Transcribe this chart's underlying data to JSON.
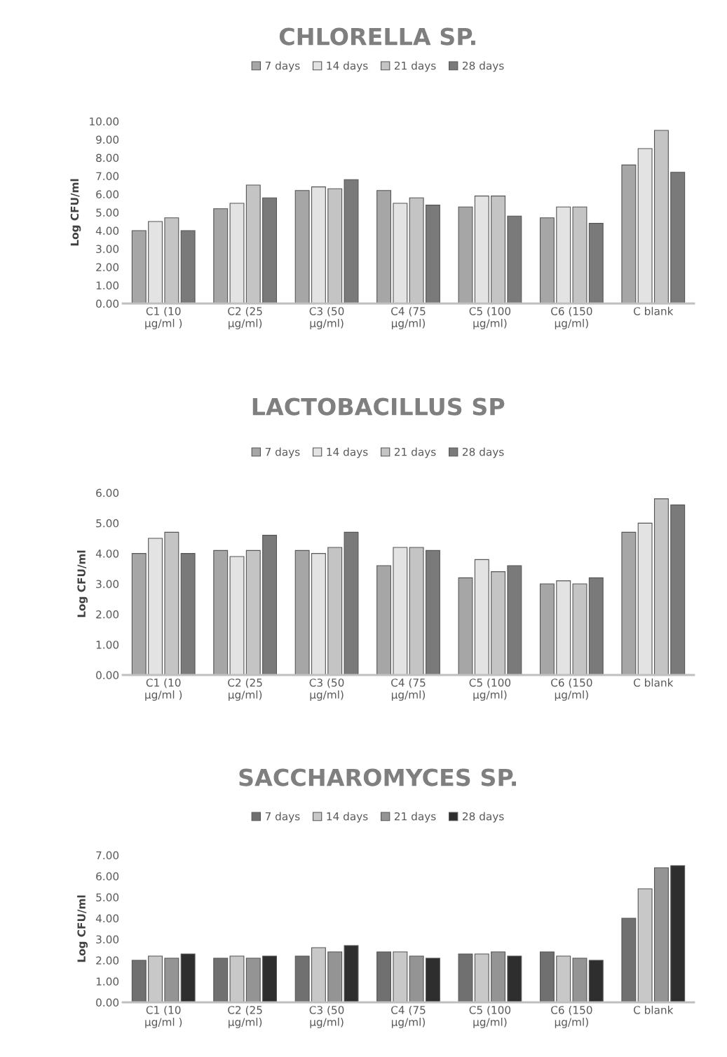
{
  "chart_data": [
    {
      "type": "bar",
      "title": "CHLORELLA SP.",
      "ylabel": "Log CFU/ml",
      "legend": "top",
      "grid": false,
      "categories": [
        "C1 (10\nμg/ml )",
        "C2 (25\nμg/ml)",
        "C3 (50\nμg/ml)",
        "C4 (75\nμg/ml)",
        "C5 (100\nμg/ml)",
        "C6 (150\nμg/ml)",
        "C blank"
      ],
      "ylim": [
        0,
        10
      ],
      "yticks": [
        {
          "value": 0,
          "label": "0.00"
        },
        {
          "value": 1,
          "label": "1.00"
        },
        {
          "value": 2,
          "label": "2.00"
        },
        {
          "value": 3,
          "label": "3.00"
        },
        {
          "value": 4,
          "label": "4.00"
        },
        {
          "value": 5,
          "label": "5.00"
        },
        {
          "value": 6,
          "label": "6.00"
        },
        {
          "value": 7,
          "label": "7.00"
        },
        {
          "value": 8,
          "label": "8.00"
        },
        {
          "value": 9,
          "label": "9.00"
        },
        {
          "value": 10,
          "label": "10.00"
        }
      ],
      "series": [
        {
          "name": "7 days",
          "color": "#a6a6a6",
          "values": [
            4.0,
            5.2,
            6.2,
            6.2,
            5.3,
            4.7,
            7.6
          ]
        },
        {
          "name": "14 days",
          "color": "#e3e3e3",
          "values": [
            4.5,
            5.5,
            6.4,
            5.5,
            5.9,
            5.3,
            8.5
          ]
        },
        {
          "name": "21 days",
          "color": "#c4c4c4",
          "values": [
            4.7,
            6.5,
            6.3,
            5.8,
            5.9,
            5.3,
            9.5
          ]
        },
        {
          "name": "28 days",
          "color": "#7a7a7a",
          "values": [
            4.0,
            5.8,
            6.8,
            5.4,
            4.8,
            4.4,
            7.2
          ]
        }
      ]
    },
    {
      "type": "bar",
      "title": "LACTOBACILLUS SP",
      "ylabel": "Log CFU/ml",
      "legend": "top",
      "grid": false,
      "categories": [
        "C1 (10\nμg/ml )",
        "C2 (25\nμg/ml)",
        "C3 (50\nμg/ml)",
        "C4 (75\nμg/ml)",
        "C5 (100\nμg/ml)",
        "C6 (150\nμg/ml)",
        "C blank"
      ],
      "ylim": [
        0,
        6
      ],
      "yticks": [
        {
          "value": 0,
          "label": "0.00"
        },
        {
          "value": 1,
          "label": "1.00"
        },
        {
          "value": 2,
          "label": "2.00"
        },
        {
          "value": 3,
          "label": "3.00"
        },
        {
          "value": 4,
          "label": "4.00"
        },
        {
          "value": 5,
          "label": "5.00"
        },
        {
          "value": 6,
          "label": "6.00"
        }
      ],
      "series": [
        {
          "name": "7 days",
          "color": "#a6a6a6",
          "values": [
            4.0,
            4.1,
            4.1,
            3.6,
            3.2,
            3.0,
            4.7
          ]
        },
        {
          "name": "14 days",
          "color": "#e3e3e3",
          "values": [
            4.5,
            3.9,
            4.0,
            4.2,
            3.8,
            3.1,
            5.0
          ]
        },
        {
          "name": "21 days",
          "color": "#c4c4c4",
          "values": [
            4.7,
            4.1,
            4.2,
            4.2,
            3.4,
            3.0,
            5.8
          ]
        },
        {
          "name": "28 days",
          "color": "#7a7a7a",
          "values": [
            4.0,
            4.6,
            4.7,
            4.1,
            3.6,
            3.2,
            5.6
          ]
        }
      ]
    },
    {
      "type": "bar",
      "title": "SACCHAROMYCES SP.",
      "ylabel": "Log CFU/ml",
      "legend": "top",
      "grid": false,
      "categories": [
        "C1 (10\nμg/ml )",
        "C2 (25\nμg/ml)",
        "C3 (50\nμg/ml)",
        "C4 (75\nμg/ml)",
        "C5 (100\nμg/ml)",
        "C6 (150\nμg/ml)",
        "C blank"
      ],
      "ylim": [
        0,
        7
      ],
      "yticks": [
        {
          "value": 0,
          "label": "0.00"
        },
        {
          "value": 1,
          "label": "1.00"
        },
        {
          "value": 2,
          "label": "2.00"
        },
        {
          "value": 3,
          "label": "3.00"
        },
        {
          "value": 4,
          "label": "4.00"
        },
        {
          "value": 5,
          "label": "5.00"
        },
        {
          "value": 6,
          "label": "6.00"
        },
        {
          "value": 7,
          "label": "7.00"
        }
      ],
      "series": [
        {
          "name": "7 days",
          "color": "#707070",
          "values": [
            2.0,
            2.1,
            2.2,
            2.4,
            2.3,
            2.4,
            4.0
          ]
        },
        {
          "name": "14 days",
          "color": "#c8c8c8",
          "values": [
            2.2,
            2.2,
            2.6,
            2.4,
            2.3,
            2.2,
            5.4
          ]
        },
        {
          "name": "21 days",
          "color": "#949494",
          "values": [
            2.1,
            2.1,
            2.4,
            2.2,
            2.4,
            2.1,
            6.4
          ]
        },
        {
          "name": "28 days",
          "color": "#2e2e2e",
          "values": [
            2.3,
            2.2,
            2.7,
            2.1,
            2.2,
            2.0,
            6.5
          ]
        }
      ]
    }
  ]
}
